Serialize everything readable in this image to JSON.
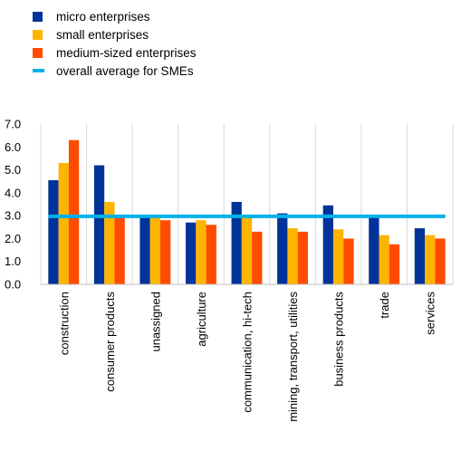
{
  "chart_data": {
    "type": "bar",
    "categories": [
      "construction",
      "consumer products",
      "unassigned",
      "agriculture",
      "communication, hi-tech",
      "mining, transport, utilities",
      "business products",
      "trade",
      "services"
    ],
    "series": [
      {
        "name": "micro enterprises",
        "color": "#003399",
        "values": [
          4.55,
          5.2,
          2.95,
          2.7,
          3.6,
          3.1,
          3.45,
          2.95,
          2.45
        ]
      },
      {
        "name": "small enterprises",
        "color": "#FFB400",
        "values": [
          5.3,
          3.6,
          2.95,
          2.8,
          2.95,
          2.45,
          2.4,
          2.15,
          2.15
        ]
      },
      {
        "name": "medium-sized enterprises",
        "color": "#FF4B00",
        "values": [
          6.3,
          2.9,
          2.8,
          2.6,
          2.3,
          2.3,
          2.0,
          1.75,
          2.0
        ]
      }
    ],
    "reference_line": {
      "name": "overall average for SMEs",
      "color": "#00B1EA",
      "value": 2.97
    },
    "title": "",
    "xlabel": "",
    "ylabel": "",
    "ylim": [
      0,
      7
    ],
    "yticks": [
      "0.0",
      "1.0",
      "2.0",
      "3.0",
      "4.0",
      "5.0",
      "6.0",
      "7.0"
    ],
    "grid": "vertical",
    "legend": "top-left"
  }
}
